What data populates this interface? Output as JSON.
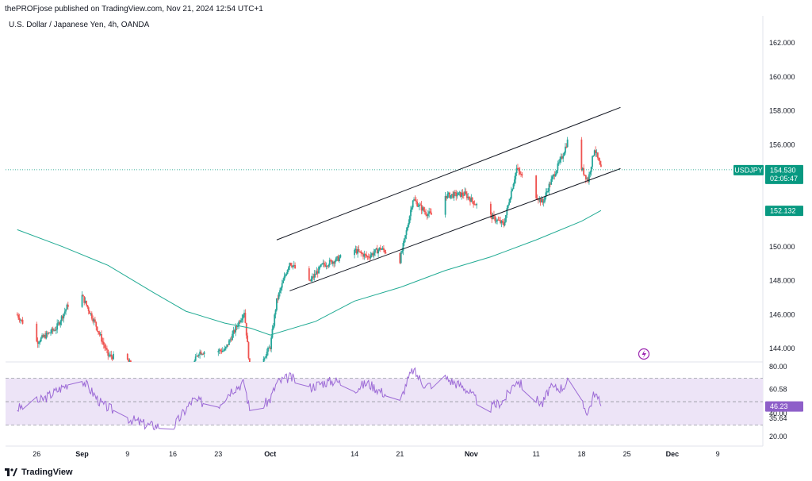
{
  "header": {
    "publish_line": "thePROFjose published on TradingView.com, Nov 21, 2024 12:54 UTC+1",
    "symbol_line": "U.S. Dollar / Japanese Yen, 4h, OANDA"
  },
  "footer": {
    "brand": "TradingView"
  },
  "colors": {
    "up": "#26a69a",
    "down": "#ef5350",
    "ma": "#22ab94",
    "rsi_line": "#9c6ad6",
    "rsi_band": "#ede4f7",
    "channel": "#131722",
    "price_tag": "#089981",
    "rsi_tag": "#8e5fc9"
  },
  "chart_data": [
    {
      "type": "candlestick",
      "title": "U.S. Dollar / Japanese Yen, 4h, OANDA",
      "symbol": "USDJPY",
      "last_price": 154.53,
      "last_price_label": "154.530",
      "countdown": "02:05:47",
      "y_ticks": [
        144.0,
        146.0,
        148.0,
        150.0,
        152.0,
        154.0,
        156.0,
        158.0,
        160.0,
        162.0
      ],
      "y_tick_labels": [
        "144.000",
        "146.000",
        "148.000",
        "150.000",
        "152.000",
        "154.000",
        "156.000",
        "158.000",
        "160.000",
        "162.000"
      ],
      "x_ticks": [
        "26",
        "Sep",
        "9",
        "16",
        "23",
        "Oct",
        "14",
        "21",
        "Nov",
        "11",
        "18",
        "25",
        "Dec",
        "9"
      ],
      "x_ticks_bold": [
        "Sep",
        "Oct",
        "Nov",
        "Dec"
      ],
      "x_tick_dates": [
        "2024-08-26",
        "2024-09-02",
        "2024-09-09",
        "2024-09-16",
        "2024-09-23",
        "2024-10-01",
        "2024-10-14",
        "2024-10-21",
        "2024-11-01",
        "2024-11-11",
        "2024-11-18",
        "2024-11-25",
        "2024-12-02",
        "2024-12-09"
      ],
      "moving_average": {
        "last_value_label": "152.132",
        "points": [
          [
            "2024-08-23",
            151.0
          ],
          [
            "2024-08-30",
            150.0
          ],
          [
            "2024-09-06",
            148.9
          ],
          [
            "2024-09-13",
            147.3
          ],
          [
            "2024-09-18",
            146.2
          ],
          [
            "2024-09-24",
            145.5
          ],
          [
            "2024-09-28",
            145.2
          ],
          [
            "2024-10-01",
            144.8
          ],
          [
            "2024-10-08",
            145.6
          ],
          [
            "2024-10-14",
            146.8
          ],
          [
            "2024-10-21",
            147.6
          ],
          [
            "2024-10-28",
            148.6
          ],
          [
            "2024-11-04",
            149.4
          ],
          [
            "2024-11-11",
            150.4
          ],
          [
            "2024-11-18",
            151.5
          ],
          [
            "2024-11-21",
            152.132
          ]
        ]
      },
      "channel": {
        "upper": [
          [
            "2024-10-02",
            150.4
          ],
          [
            "2024-11-24",
            158.2
          ]
        ],
        "lower": [
          [
            "2024-10-04",
            147.4
          ],
          [
            "2024-11-24",
            154.6
          ]
        ]
      },
      "price_path": [
        [
          "2024-08-23",
          146.0
        ],
        [
          "2024-08-26",
          144.4
        ],
        [
          "2024-08-29",
          145.2
        ],
        [
          "2024-08-31",
          146.7
        ],
        [
          "2024-09-02",
          147.1
        ],
        [
          "2024-09-04",
          145.5
        ],
        [
          "2024-09-06",
          143.6
        ],
        [
          "2024-09-09",
          143.3
        ],
        [
          "2024-09-13",
          141.3
        ],
        [
          "2024-09-16",
          140.4
        ],
        [
          "2024-09-20",
          143.8
        ],
        [
          "2024-09-24",
          143.9
        ],
        [
          "2024-09-27",
          146.2
        ],
        [
          "2024-09-28",
          142.3
        ],
        [
          "2024-10-01",
          144.1
        ],
        [
          "2024-10-02",
          146.8
        ],
        [
          "2024-10-04",
          149.1
        ],
        [
          "2024-10-06",
          148.2
        ],
        [
          "2024-10-07",
          147.9
        ],
        [
          "2024-10-09",
          148.9
        ],
        [
          "2024-10-11",
          149.2
        ],
        [
          "2024-10-14",
          149.8
        ],
        [
          "2024-10-16",
          149.4
        ],
        [
          "2024-10-18",
          149.9
        ],
        [
          "2024-10-21",
          149.2
        ],
        [
          "2024-10-22",
          150.9
        ],
        [
          "2024-10-23",
          152.8
        ],
        [
          "2024-10-25",
          152.0
        ],
        [
          "2024-10-27",
          151.7
        ],
        [
          "2024-10-28",
          153.0
        ],
        [
          "2024-10-31",
          153.1
        ],
        [
          "2024-11-02",
          152.4
        ],
        [
          "2024-11-04",
          151.8
        ],
        [
          "2024-11-06",
          151.3
        ],
        [
          "2024-11-07",
          153.0
        ],
        [
          "2024-11-08",
          154.6
        ],
        [
          "2024-11-10",
          153.4
        ],
        [
          "2024-11-12",
          152.6
        ],
        [
          "2024-11-13",
          153.6
        ],
        [
          "2024-11-15",
          155.3
        ],
        [
          "2024-11-16",
          156.4
        ],
        [
          "2024-11-17",
          156.6
        ],
        [
          "2024-11-18",
          154.6
        ],
        [
          "2024-11-19",
          153.9
        ],
        [
          "2024-11-20",
          155.8
        ],
        [
          "2024-11-21",
          154.53
        ]
      ]
    },
    {
      "type": "line",
      "title": "RSI",
      "y_ticks": [
        20.0,
        35.64,
        40.0,
        60.58,
        80.0
      ],
      "y_tick_labels": [
        "20.00",
        "35.64",
        "40.00",
        "60.58",
        "80.00"
      ],
      "band": [
        30,
        70
      ],
      "midline": 50,
      "last_value_label": "46.23",
      "points": [
        [
          "2024-08-23",
          44
        ],
        [
          "2024-08-27",
          52
        ],
        [
          "2024-08-31",
          66
        ],
        [
          "2024-09-02",
          69
        ],
        [
          "2024-09-05",
          48
        ],
        [
          "2024-09-09",
          36
        ],
        [
          "2024-09-12",
          30
        ],
        [
          "2024-09-16",
          28
        ],
        [
          "2024-09-19",
          51
        ],
        [
          "2024-09-23",
          47
        ],
        [
          "2024-09-25",
          60
        ],
        [
          "2024-09-27",
          66
        ],
        [
          "2024-09-28",
          38
        ],
        [
          "2024-10-01",
          52
        ],
        [
          "2024-10-02",
          66
        ],
        [
          "2024-10-04",
          71
        ],
        [
          "2024-10-07",
          62
        ],
        [
          "2024-10-09",
          66
        ],
        [
          "2024-10-11",
          68
        ],
        [
          "2024-10-14",
          61
        ],
        [
          "2024-10-16",
          66
        ],
        [
          "2024-10-18",
          59
        ],
        [
          "2024-10-21",
          49
        ],
        [
          "2024-10-22",
          66
        ],
        [
          "2024-10-23",
          77
        ],
        [
          "2024-10-25",
          63
        ],
        [
          "2024-10-28",
          70
        ],
        [
          "2024-10-31",
          62
        ],
        [
          "2024-11-02",
          50
        ],
        [
          "2024-11-04",
          45
        ],
        [
          "2024-11-06",
          51
        ],
        [
          "2024-11-08",
          69
        ],
        [
          "2024-11-10",
          56
        ],
        [
          "2024-11-12",
          48
        ],
        [
          "2024-11-13",
          61
        ],
        [
          "2024-11-15",
          62
        ],
        [
          "2024-11-16",
          68
        ],
        [
          "2024-11-17",
          68
        ],
        [
          "2024-11-18",
          48
        ],
        [
          "2024-11-19",
          41
        ],
        [
          "2024-11-20",
          58
        ],
        [
          "2024-11-21",
          46.23
        ]
      ]
    }
  ]
}
